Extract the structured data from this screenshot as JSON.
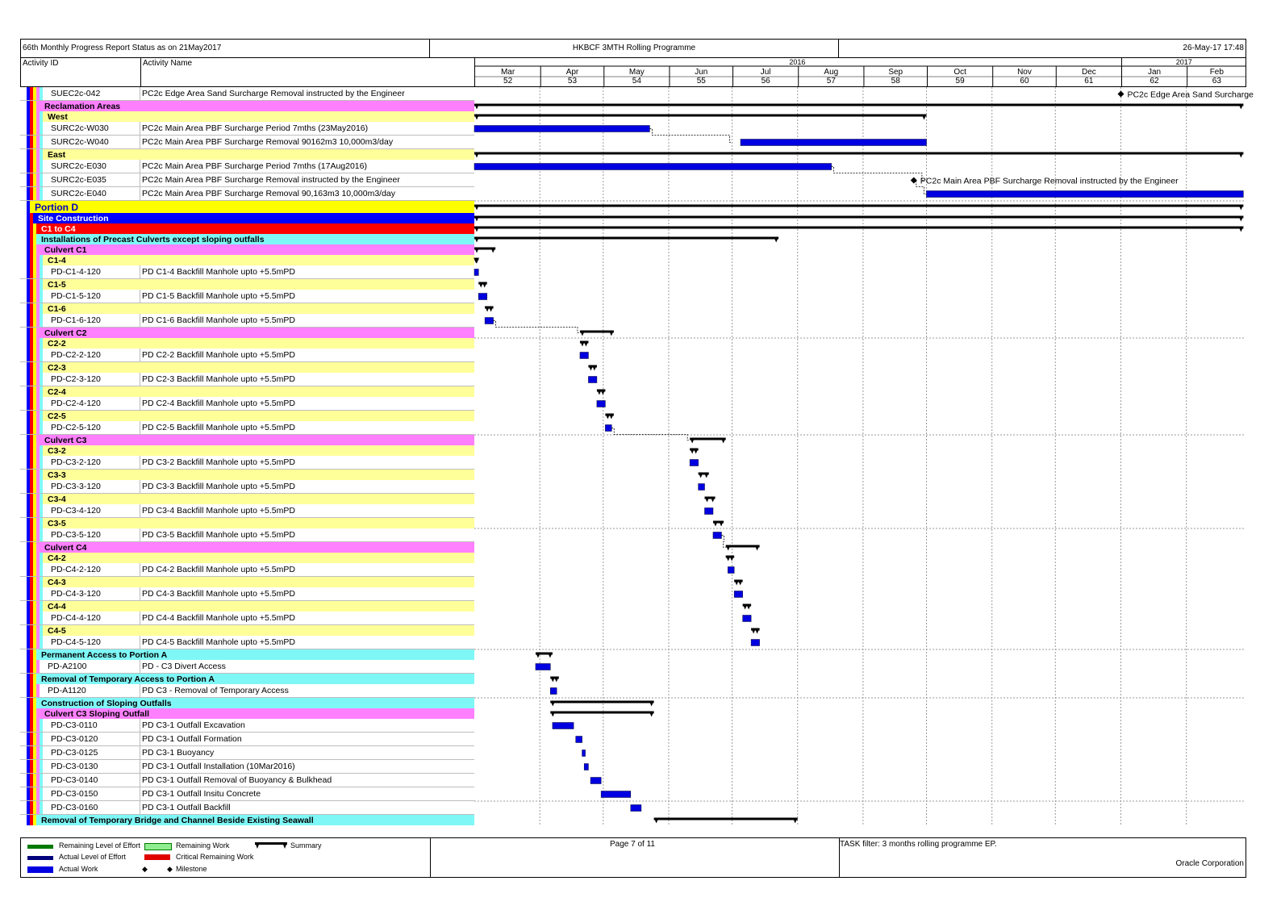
{
  "header": {
    "report_status": "66th Monthly Progress Report Status as on 21May2017",
    "programme": "HKBCF 3MTH Rolling Programme",
    "timestamp": "26-May-17 17:48"
  },
  "columns": {
    "activity_id": "Activity ID",
    "activity_name": "Activity Name"
  },
  "colors": {
    "actual_work": "#0000e0",
    "summary": "#000000",
    "portion": "#ffff00",
    "site_construction": "#0000ff",
    "c1_c4": "#ff0000",
    "cyan_group": "#7ff7f7",
    "magenta_group": "#ff80ff",
    "yellow_group": "#ffff99"
  },
  "chart_data": {
    "type": "gantt",
    "timescale": {
      "years": [
        {
          "label": "2016",
          "from": "2016-03-01",
          "to": "2016-12-31"
        },
        {
          "label": "2017",
          "from": "2017-01-01",
          "to": "2017-02-28"
        }
      ],
      "months": [
        "Mar",
        "Apr",
        "May",
        "Jun",
        "Jul",
        "Aug",
        "Sep",
        "Oct",
        "Nov",
        "Dec",
        "Jan",
        "Feb"
      ],
      "month_numbers": [
        "52",
        "53",
        "54",
        "55",
        "56",
        "57",
        "58",
        "59",
        "60",
        "61",
        "62",
        "63"
      ]
    },
    "rows": [
      {
        "kind": "activity",
        "level": 5,
        "id": "SUEC2c-042",
        "name": "PC2c Edge Area Sand Surcharge Removal instructed by the Engineer",
        "milestone": "2017-01-01",
        "milestone_label": "PC2c Edge Area Sand Surcharge"
      },
      {
        "kind": "group",
        "style": "magenta",
        "level": 4,
        "name": "Reclamation Areas",
        "summary": [
          "2016-03-01",
          "2017-02-28"
        ]
      },
      {
        "kind": "group",
        "style": "yellow",
        "level": 5,
        "name": "West",
        "summary": [
          "2016-03-01",
          "2016-10-01"
        ]
      },
      {
        "kind": "activity",
        "level": 5,
        "id": "SURC2c-W030",
        "name": "PC2c Main Area PBF Surcharge Period 7mths (23May2016)",
        "bar": [
          "2016-03-01",
          "2016-05-23"
        ],
        "link_to": "2016-07-01"
      },
      {
        "kind": "activity",
        "level": 5,
        "id": "SURC2c-W040",
        "name": "PC2c Main Area PBF Surcharge Removal 90162m3 10,000m3/day",
        "bar": [
          "2016-07-05",
          "2016-10-01"
        ]
      },
      {
        "kind": "group",
        "style": "yellow",
        "level": 5,
        "name": "East",
        "summary": [
          "2016-03-01",
          "2017-02-28"
        ]
      },
      {
        "kind": "activity",
        "level": 5,
        "id": "SURC2c-E030",
        "name": "PC2c Main Area PBF Surcharge Period 7mths (17Aug2016)",
        "bar": [
          "2016-03-01",
          "2016-08-17"
        ],
        "link_to": "2016-09-30"
      },
      {
        "kind": "activity",
        "level": 5,
        "id": "SURC2c-E035",
        "name": "PC2c Main Area PBF Surcharge Removal instructed by the Engineer",
        "milestone": "2016-09-25",
        "milestone_label": "PC2c Main Area PBF Surcharge Removal instructed by the Engineer",
        "link_to": "2016-10-01"
      },
      {
        "kind": "activity",
        "level": 5,
        "id": "SURC2c-E040",
        "name": "PC2c Main Area PBF Surcharge Removal 90,163m3 10,000m3/day",
        "bar": [
          "2016-10-01",
          "2017-02-28"
        ]
      },
      {
        "kind": "group",
        "style": "portion",
        "level": 1,
        "name": "Portion D",
        "summary": [
          "2016-03-01",
          "2017-02-28"
        ]
      },
      {
        "kind": "group",
        "style": "site",
        "level": 2,
        "name": "Site Construction",
        "summary": [
          "2016-03-01",
          "2017-02-28"
        ]
      },
      {
        "kind": "group",
        "style": "red",
        "level": 3,
        "name": "C1 to C4",
        "summary": [
          "2016-03-01",
          "2017-02-28"
        ]
      },
      {
        "kind": "group",
        "style": "cyan",
        "level": 3,
        "name": "Installations of Precast Culverts except sloping outfalls",
        "summary": [
          "2016-03-01",
          "2016-07-23"
        ]
      },
      {
        "kind": "group",
        "style": "magenta",
        "level": 4,
        "name": "Culvert C1",
        "summary": [
          "2016-03-01",
          "2016-03-11"
        ]
      },
      {
        "kind": "group",
        "style": "yellow",
        "level": 5,
        "name": "C1-4",
        "summary": [
          "2016-03-01",
          "2016-03-03"
        ]
      },
      {
        "kind": "activity",
        "level": 6,
        "id": "PD-C1-4-120",
        "name": "PD C1-4 Backfill Manhole upto +5.5mPD",
        "bar": [
          "2016-03-01",
          "2016-03-03"
        ]
      },
      {
        "kind": "group",
        "style": "yellow",
        "level": 5,
        "name": "C1-5",
        "summary": [
          "2016-03-03",
          "2016-03-07"
        ]
      },
      {
        "kind": "activity",
        "level": 6,
        "id": "PD-C1-5-120",
        "name": "PD C1-5 Backfill Manhole upto +5.5mPD",
        "bar": [
          "2016-03-03",
          "2016-03-07"
        ]
      },
      {
        "kind": "group",
        "style": "yellow",
        "level": 5,
        "name": "C1-6",
        "summary": [
          "2016-03-06",
          "2016-03-10"
        ]
      },
      {
        "kind": "activity",
        "level": 6,
        "id": "PD-C1-6-120",
        "name": "PD C1-6 Backfill Manhole upto +5.5mPD",
        "bar": [
          "2016-03-06",
          "2016-03-10"
        ],
        "link_to": "2016-04-20"
      },
      {
        "kind": "group",
        "style": "magenta",
        "level": 4,
        "name": "Culvert C2",
        "summary": [
          "2016-04-20",
          "2016-05-06"
        ]
      },
      {
        "kind": "group",
        "style": "yellow",
        "level": 5,
        "name": "C2-2",
        "summary": [
          "2016-04-20",
          "2016-04-24"
        ]
      },
      {
        "kind": "activity",
        "level": 6,
        "id": "PD-C2-2-120",
        "name": "PD C2-2 Backfill Manhole upto +5.5mPD",
        "bar": [
          "2016-04-20",
          "2016-04-24"
        ]
      },
      {
        "kind": "group",
        "style": "yellow",
        "level": 5,
        "name": "C2-3",
        "summary": [
          "2016-04-24",
          "2016-04-28"
        ]
      },
      {
        "kind": "activity",
        "level": 6,
        "id": "PD-C2-3-120",
        "name": "PD C2-3 Backfill Manhole upto +5.5mPD",
        "bar": [
          "2016-04-24",
          "2016-04-28"
        ]
      },
      {
        "kind": "group",
        "style": "yellow",
        "level": 5,
        "name": "C2-4",
        "summary": [
          "2016-04-28",
          "2016-05-02"
        ]
      },
      {
        "kind": "activity",
        "level": 6,
        "id": "PD-C2-4-120",
        "name": "PD C2-4 Backfill Manhole upto +5.5mPD",
        "bar": [
          "2016-04-28",
          "2016-05-02"
        ]
      },
      {
        "kind": "group",
        "style": "yellow",
        "level": 5,
        "name": "C2-5",
        "summary": [
          "2016-05-02",
          "2016-05-06"
        ]
      },
      {
        "kind": "activity",
        "level": 6,
        "id": "PD-C2-5-120",
        "name": "PD C2-5 Backfill Manhole upto +5.5mPD",
        "bar": [
          "2016-05-02",
          "2016-05-05"
        ],
        "link_to": "2016-06-11"
      },
      {
        "kind": "group",
        "style": "magenta",
        "level": 4,
        "name": "Culvert C3",
        "summary": [
          "2016-06-11",
          "2016-06-28"
        ]
      },
      {
        "kind": "group",
        "style": "yellow",
        "level": 5,
        "name": "C3-2",
        "summary": [
          "2016-06-11",
          "2016-06-15"
        ]
      },
      {
        "kind": "activity",
        "level": 6,
        "id": "PD-C3-2-120",
        "name": "PD C3-2 Backfill Manhole upto +5.5mPD",
        "bar": [
          "2016-06-11",
          "2016-06-15"
        ]
      },
      {
        "kind": "group",
        "style": "yellow",
        "level": 5,
        "name": "C3-3",
        "summary": [
          "2016-06-15",
          "2016-06-20"
        ]
      },
      {
        "kind": "activity",
        "level": 6,
        "id": "PD-C3-3-120",
        "name": "PD C3-3 Backfill Manhole upto +5.5mPD",
        "bar": [
          "2016-06-15",
          "2016-06-18"
        ]
      },
      {
        "kind": "group",
        "style": "yellow",
        "level": 5,
        "name": "C3-4",
        "summary": [
          "2016-06-18",
          "2016-06-23"
        ]
      },
      {
        "kind": "activity",
        "level": 6,
        "id": "PD-C3-4-120",
        "name": "PD C3-4 Backfill Manhole upto +5.5mPD",
        "bar": [
          "2016-06-18",
          "2016-06-22"
        ]
      },
      {
        "kind": "group",
        "style": "yellow",
        "level": 5,
        "name": "C3-5",
        "summary": [
          "2016-06-22",
          "2016-06-27"
        ]
      },
      {
        "kind": "activity",
        "level": 6,
        "id": "PD-C3-5-120",
        "name": "PD C3-5 Backfill Manhole upto +5.5mPD",
        "bar": [
          "2016-06-22",
          "2016-06-26"
        ],
        "link_to": "2016-06-28"
      },
      {
        "kind": "group",
        "style": "magenta",
        "level": 4,
        "name": "Culvert C4",
        "summary": [
          "2016-06-28",
          "2016-07-14"
        ]
      },
      {
        "kind": "group",
        "style": "yellow",
        "level": 5,
        "name": "C4-2",
        "summary": [
          "2016-06-28",
          "2016-07-02"
        ]
      },
      {
        "kind": "activity",
        "level": 6,
        "id": "PD-C4-2-120",
        "name": "PD C4-2 Backfill Manhole upto +5.5mPD",
        "bar": [
          "2016-06-29",
          "2016-07-02"
        ]
      },
      {
        "kind": "group",
        "style": "yellow",
        "level": 5,
        "name": "C4-3",
        "summary": [
          "2016-07-02",
          "2016-07-06"
        ]
      },
      {
        "kind": "activity",
        "level": 6,
        "id": "PD-C4-3-120",
        "name": "PD C4-3 Backfill Manhole upto +5.5mPD",
        "bar": [
          "2016-07-02",
          "2016-07-06"
        ]
      },
      {
        "kind": "group",
        "style": "yellow",
        "level": 5,
        "name": "C4-4",
        "summary": [
          "2016-07-06",
          "2016-07-10"
        ]
      },
      {
        "kind": "activity",
        "level": 6,
        "id": "PD-C4-4-120",
        "name": "PD C4-4 Backfill Manhole upto +5.5mPD",
        "bar": [
          "2016-07-06",
          "2016-07-10"
        ]
      },
      {
        "kind": "group",
        "style": "yellow",
        "level": 5,
        "name": "C4-5",
        "summary": [
          "2016-07-10",
          "2016-07-14"
        ]
      },
      {
        "kind": "activity",
        "level": 6,
        "id": "PD-C4-5-120",
        "name": "PD C4-5 Backfill Manhole upto +5.5mPD",
        "bar": [
          "2016-07-10",
          "2016-07-14"
        ]
      },
      {
        "kind": "group",
        "style": "cyan",
        "level": 3,
        "name": "Permanent Access to Portion A",
        "summary": [
          "2016-03-30",
          "2016-04-07"
        ]
      },
      {
        "kind": "activity",
        "level": 4,
        "id": "PD-A2100",
        "name": "PD - C3 Divert Access",
        "bar": [
          "2016-03-30",
          "2016-04-06"
        ]
      },
      {
        "kind": "group",
        "style": "cyan",
        "level": 3,
        "name": "Removal of Temporary Access to Portion A",
        "summary": [
          "2016-04-06",
          "2016-04-10"
        ]
      },
      {
        "kind": "activity",
        "level": 4,
        "id": "PD-A1120",
        "name": "PD C3 - Removal of Temporary Access",
        "bar": [
          "2016-04-06",
          "2016-04-09"
        ]
      },
      {
        "kind": "group",
        "style": "cyan",
        "level": 3,
        "name": "Construction of Sloping Outfalls",
        "summary": [
          "2016-04-06",
          "2016-05-25"
        ]
      },
      {
        "kind": "group",
        "style": "magenta",
        "level": 4,
        "name": "Culvert C3 Sloping Outfall",
        "summary": [
          "2016-04-06",
          "2016-05-25"
        ]
      },
      {
        "kind": "activity",
        "level": 5,
        "id": "PD-C3-0110",
        "name": "PD C3-1 Outfall Excavation",
        "bar": [
          "2016-04-07",
          "2016-04-17"
        ]
      },
      {
        "kind": "activity",
        "level": 5,
        "id": "PD-C3-0120",
        "name": "PD C3-1 Outfall Formation",
        "bar": [
          "2016-04-18",
          "2016-04-21"
        ]
      },
      {
        "kind": "activity",
        "level": 5,
        "id": "PD-C3-0125",
        "name": "PD C3-1 Buoyancy",
        "bar": [
          "2016-04-21",
          "2016-04-22"
        ]
      },
      {
        "kind": "activity",
        "level": 5,
        "id": "PD-C3-0130",
        "name": "PD C3-1 Outfall Installation (10Mar2016)",
        "bar": [
          "2016-04-22",
          "2016-04-24"
        ]
      },
      {
        "kind": "activity",
        "level": 5,
        "id": "PD-C3-0140",
        "name": "PD C3-1 Outfall Removal of Buoyancy & Bulkhead",
        "bar": [
          "2016-04-25",
          "2016-04-30"
        ]
      },
      {
        "kind": "activity",
        "level": 5,
        "id": "PD-C3-0150",
        "name": "PD C3-1 Outfall Insitu Concrete",
        "bar": [
          "2016-04-30",
          "2016-05-14"
        ]
      },
      {
        "kind": "activity",
        "level": 5,
        "id": "PD-C3-0160",
        "name": "PD C3-1 Outfall Backfill",
        "bar": [
          "2016-05-14",
          "2016-05-19"
        ]
      },
      {
        "kind": "group",
        "style": "cyan",
        "level": 3,
        "name": "Removal of Temporary Bridge and Channel Beside Existing Seawall",
        "summary": [
          "2016-05-25",
          "2016-08-01"
        ]
      }
    ]
  },
  "legend": {
    "remaining_loe": "Remaining Level of Effort",
    "actual_loe": "Actual Level of Effort",
    "actual_work": "Actual Work",
    "remaining_work": "Remaining Work",
    "critical_remaining": "Critical Remaining Work",
    "milestone": "Milestone",
    "summary": "Summary"
  },
  "footer": {
    "page": "Page 7 of 11",
    "filter": "TASK filter: 3 months rolling programme EP.",
    "company": "Oracle Corporation"
  }
}
